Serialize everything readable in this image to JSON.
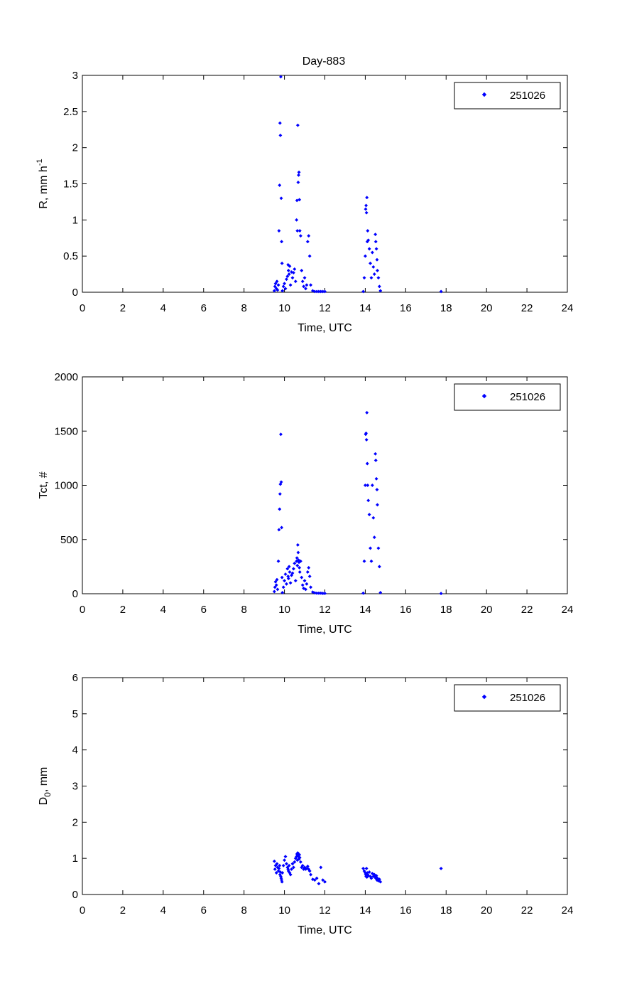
{
  "figure": {
    "title": "Day-883"
  },
  "colors": {
    "series": "#0000ff",
    "axis": "#000000",
    "background": "#ffffff"
  },
  "chart_data": [
    {
      "type": "scatter",
      "title": "Day-883",
      "xlabel": "Time, UTC",
      "ylabel": "R, mm h",
      "ylabel_sup": "-1",
      "xlim": [
        0,
        24
      ],
      "ylim": [
        0,
        3
      ],
      "xticks": [
        "0",
        "2",
        "4",
        "6",
        "8",
        "10",
        "12",
        "14",
        "16",
        "18",
        "20",
        "22",
        "24"
      ],
      "yticks": [
        "0",
        "0.5",
        "1",
        "1.5",
        "2",
        "2.5",
        "3"
      ],
      "grid": false,
      "legend": {
        "position": "top-right",
        "entries": [
          "251026"
        ]
      },
      "series": [
        {
          "name": "251026",
          "marker": "diamond",
          "points": [
            [
              9.5,
              0.02
            ],
            [
              9.53,
              0.08
            ],
            [
              9.56,
              0.12
            ],
            [
              9.6,
              0.05
            ],
            [
              9.63,
              0.15
            ],
            [
              9.66,
              0.03
            ],
            [
              9.7,
              0.1
            ],
            [
              9.73,
              0.85
            ],
            [
              9.76,
              1.48
            ],
            [
              9.78,
              2.34
            ],
            [
              9.8,
              2.17
            ],
            [
              9.82,
              2.98
            ],
            [
              9.84,
              1.3
            ],
            [
              9.86,
              0.7
            ],
            [
              9.88,
              0.4
            ],
            [
              9.9,
              0.02
            ],
            [
              9.95,
              0.08
            ],
            [
              10.0,
              0.12
            ],
            [
              10.05,
              0.05
            ],
            [
              10.1,
              0.18
            ],
            [
              10.15,
              0.22
            ],
            [
              10.18,
              0.38
            ],
            [
              10.2,
              0.3
            ],
            [
              10.23,
              0.25
            ],
            [
              10.26,
              0.36
            ],
            [
              10.3,
              0.1
            ],
            [
              10.35,
              0.28
            ],
            [
              10.4,
              0.2
            ],
            [
              10.45,
              0.27
            ],
            [
              10.5,
              0.32
            ],
            [
              10.55,
              0.15
            ],
            [
              10.6,
              1.0
            ],
            [
              10.62,
              1.27
            ],
            [
              10.64,
              0.85
            ],
            [
              10.66,
              2.31
            ],
            [
              10.68,
              1.52
            ],
            [
              10.7,
              1.62
            ],
            [
              10.72,
              1.66
            ],
            [
              10.74,
              1.28
            ],
            [
              10.76,
              0.85
            ],
            [
              10.8,
              0.78
            ],
            [
              10.85,
              0.3
            ],
            [
              10.9,
              0.15
            ],
            [
              10.95,
              0.08
            ],
            [
              11.0,
              0.2
            ],
            [
              11.05,
              0.05
            ],
            [
              11.1,
              0.1
            ],
            [
              11.15,
              0.7
            ],
            [
              11.2,
              0.78
            ],
            [
              11.25,
              0.5
            ],
            [
              11.3,
              0.1
            ],
            [
              11.4,
              0.02
            ],
            [
              11.5,
              0.01
            ],
            [
              11.6,
              0.01
            ],
            [
              11.7,
              0.01
            ],
            [
              11.8,
              0.01
            ],
            [
              11.9,
              0.01
            ],
            [
              12.0,
              0.01
            ],
            [
              13.9,
              0.01
            ],
            [
              13.95,
              0.2
            ],
            [
              14.0,
              0.5
            ],
            [
              14.02,
              1.15
            ],
            [
              14.04,
              1.2
            ],
            [
              14.06,
              1.1
            ],
            [
              14.08,
              1.31
            ],
            [
              14.1,
              0.7
            ],
            [
              14.12,
              0.85
            ],
            [
              14.15,
              0.72
            ],
            [
              14.2,
              0.6
            ],
            [
              14.25,
              0.4
            ],
            [
              14.3,
              0.2
            ],
            [
              14.35,
              0.55
            ],
            [
              14.4,
              0.35
            ],
            [
              14.45,
              0.25
            ],
            [
              14.5,
              0.8
            ],
            [
              14.52,
              0.7
            ],
            [
              14.55,
              0.6
            ],
            [
              14.58,
              0.45
            ],
            [
              14.6,
              0.3
            ],
            [
              14.65,
              0.2
            ],
            [
              14.7,
              0.08
            ],
            [
              14.75,
              0.02
            ],
            [
              17.75,
              0.01
            ]
          ]
        }
      ]
    },
    {
      "type": "scatter",
      "title": "",
      "xlabel": "Time, UTC",
      "ylabel": "Tct, #",
      "xlim": [
        0,
        24
      ],
      "ylim": [
        0,
        2000
      ],
      "xticks": [
        "0",
        "2",
        "4",
        "6",
        "8",
        "10",
        "12",
        "14",
        "16",
        "18",
        "20",
        "22",
        "24"
      ],
      "yticks": [
        "0",
        "500",
        "1000",
        "1500",
        "2000"
      ],
      "grid": false,
      "legend": {
        "position": "top-right",
        "entries": [
          "251026"
        ]
      },
      "series": [
        {
          "name": "251026",
          "marker": "diamond",
          "points": [
            [
              9.5,
              20
            ],
            [
              9.53,
              60
            ],
            [
              9.56,
              110
            ],
            [
              9.6,
              80
            ],
            [
              9.63,
              130
            ],
            [
              9.66,
              40
            ],
            [
              9.7,
              300
            ],
            [
              9.73,
              590
            ],
            [
              9.76,
              780
            ],
            [
              9.78,
              920
            ],
            [
              9.8,
              1010
            ],
            [
              9.82,
              1470
            ],
            [
              9.84,
              1030
            ],
            [
              9.86,
              610
            ],
            [
              9.88,
              150
            ],
            [
              9.9,
              10
            ],
            [
              9.95,
              60
            ],
            [
              10.0,
              120
            ],
            [
              10.05,
              180
            ],
            [
              10.1,
              90
            ],
            [
              10.15,
              230
            ],
            [
              10.18,
              160
            ],
            [
              10.2,
              140
            ],
            [
              10.23,
              250
            ],
            [
              10.26,
              200
            ],
            [
              10.3,
              100
            ],
            [
              10.35,
              170
            ],
            [
              10.4,
              190
            ],
            [
              10.45,
              230
            ],
            [
              10.5,
              280
            ],
            [
              10.55,
              120
            ],
            [
              10.6,
              300
            ],
            [
              10.62,
              330
            ],
            [
              10.64,
              260
            ],
            [
              10.66,
              450
            ],
            [
              10.68,
              380
            ],
            [
              10.7,
              310
            ],
            [
              10.72,
              290
            ],
            [
              10.74,
              240
            ],
            [
              10.76,
              200
            ],
            [
              10.8,
              300
            ],
            [
              10.85,
              150
            ],
            [
              10.9,
              80
            ],
            [
              10.95,
              50
            ],
            [
              11.0,
              120
            ],
            [
              11.05,
              40
            ],
            [
              11.1,
              90
            ],
            [
              11.15,
              200
            ],
            [
              11.2,
              240
            ],
            [
              11.25,
              160
            ],
            [
              11.3,
              60
            ],
            [
              11.4,
              15
            ],
            [
              11.5,
              8
            ],
            [
              11.6,
              5
            ],
            [
              11.7,
              5
            ],
            [
              11.8,
              5
            ],
            [
              11.9,
              3
            ],
            [
              12.0,
              3
            ],
            [
              13.9,
              5
            ],
            [
              13.95,
              300
            ],
            [
              14.0,
              1000
            ],
            [
              14.02,
              1470
            ],
            [
              14.04,
              1480
            ],
            [
              14.06,
              1420
            ],
            [
              14.08,
              1670
            ],
            [
              14.1,
              1200
            ],
            [
              14.12,
              1000
            ],
            [
              14.15,
              860
            ],
            [
              14.2,
              730
            ],
            [
              14.25,
              420
            ],
            [
              14.3,
              300
            ],
            [
              14.35,
              1000
            ],
            [
              14.4,
              700
            ],
            [
              14.45,
              520
            ],
            [
              14.5,
              1290
            ],
            [
              14.52,
              1230
            ],
            [
              14.55,
              1060
            ],
            [
              14.58,
              960
            ],
            [
              14.6,
              820
            ],
            [
              14.65,
              420
            ],
            [
              14.7,
              250
            ],
            [
              14.75,
              10
            ],
            [
              17.75,
              2
            ]
          ]
        }
      ]
    },
    {
      "type": "scatter",
      "title": "",
      "xlabel": "Time, UTC",
      "ylabel": "D",
      "ylabel_sub": "0",
      "ylabel_suffix": ", mm",
      "xlim": [
        0,
        24
      ],
      "ylim": [
        0,
        6
      ],
      "xticks": [
        "0",
        "2",
        "4",
        "6",
        "8",
        "10",
        "12",
        "14",
        "16",
        "18",
        "20",
        "22",
        "24"
      ],
      "yticks": [
        "0",
        "1",
        "2",
        "3",
        "4",
        "5",
        "6"
      ],
      "grid": false,
      "legend": {
        "position": "top-right",
        "entries": [
          "251026"
        ]
      },
      "series": [
        {
          "name": "251026",
          "marker": "diamond",
          "points": [
            [
              9.5,
              0.92
            ],
            [
              9.53,
              0.7
            ],
            [
              9.56,
              0.8
            ],
            [
              9.6,
              0.6
            ],
            [
              9.63,
              0.85
            ],
            [
              9.66,
              0.75
            ],
            [
              9.7,
              0.65
            ],
            [
              9.73,
              0.72
            ],
            [
              9.76,
              0.8
            ],
            [
              9.78,
              0.55
            ],
            [
              9.8,
              0.62
            ],
            [
              9.82,
              0.5
            ],
            [
              9.84,
              0.45
            ],
            [
              9.86,
              0.4
            ],
            [
              9.88,
              0.35
            ],
            [
              9.9,
              0.6
            ],
            [
              9.95,
              0.8
            ],
            [
              10.0,
              0.95
            ],
            [
              10.05,
              1.05
            ],
            [
              10.1,
              0.85
            ],
            [
              10.15,
              0.75
            ],
            [
              10.18,
              0.7
            ],
            [
              10.2,
              0.65
            ],
            [
              10.23,
              0.8
            ],
            [
              10.26,
              0.6
            ],
            [
              10.3,
              0.55
            ],
            [
              10.35,
              0.7
            ],
            [
              10.4,
              0.85
            ],
            [
              10.45,
              0.75
            ],
            [
              10.5,
              0.9
            ],
            [
              10.55,
              1.0
            ],
            [
              10.6,
              1.05
            ],
            [
              10.62,
              1.12
            ],
            [
              10.64,
              0.95
            ],
            [
              10.66,
              1.15
            ],
            [
              10.68,
              1.1
            ],
            [
              10.7,
              1.05
            ],
            [
              10.72,
              0.98
            ],
            [
              10.74,
              1.1
            ],
            [
              10.76,
              1.02
            ],
            [
              10.8,
              0.9
            ],
            [
              10.85,
              0.75
            ],
            [
              10.9,
              0.8
            ],
            [
              10.95,
              0.7
            ],
            [
              11.0,
              0.75
            ],
            [
              11.05,
              0.7
            ],
            [
              11.1,
              0.72
            ],
            [
              11.15,
              0.78
            ],
            [
              11.2,
              0.7
            ],
            [
              11.25,
              0.65
            ],
            [
              11.3,
              0.55
            ],
            [
              11.4,
              0.42
            ],
            [
              11.5,
              0.4
            ],
            [
              11.6,
              0.45
            ],
            [
              11.7,
              0.3
            ],
            [
              11.8,
              0.75
            ],
            [
              11.9,
              0.4
            ],
            [
              12.0,
              0.35
            ],
            [
              13.9,
              0.72
            ],
            [
              13.95,
              0.65
            ],
            [
              14.0,
              0.6
            ],
            [
              14.02,
              0.55
            ],
            [
              14.04,
              0.5
            ],
            [
              14.06,
              0.72
            ],
            [
              14.08,
              0.48
            ],
            [
              14.1,
              0.6
            ],
            [
              14.12,
              0.55
            ],
            [
              14.15,
              0.52
            ],
            [
              14.2,
              0.62
            ],
            [
              14.25,
              0.5
            ],
            [
              14.3,
              0.45
            ],
            [
              14.35,
              0.58
            ],
            [
              14.4,
              0.5
            ],
            [
              14.45,
              0.55
            ],
            [
              14.5,
              0.48
            ],
            [
              14.52,
              0.45
            ],
            [
              14.55,
              0.52
            ],
            [
              14.58,
              0.4
            ],
            [
              14.6,
              0.45
            ],
            [
              14.65,
              0.38
            ],
            [
              14.7,
              0.42
            ],
            [
              14.75,
              0.35
            ],
            [
              17.75,
              0.72
            ]
          ]
        }
      ]
    }
  ]
}
